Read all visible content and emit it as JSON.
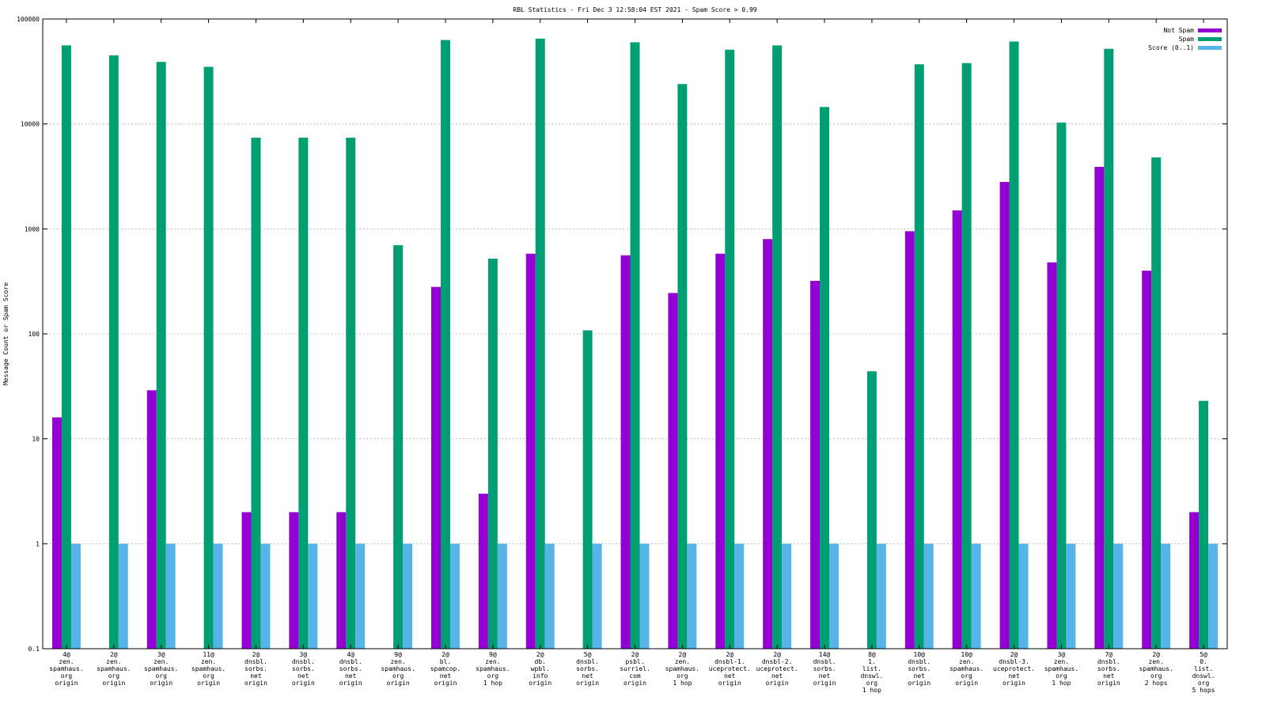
{
  "chart_data": {
    "type": "bar",
    "title": "RBL Statistics - Fri Dec  3 12:58:04 EST 2021 - Spam Score > 0.99",
    "xlabel": "",
    "ylabel": "Message Count or Spam Score",
    "yscale": "log",
    "ylim": [
      0.1,
      100000
    ],
    "yticks": [
      "0.1",
      "1",
      "10",
      "100",
      "1000",
      "10000",
      "100000"
    ],
    "grid": true,
    "legend_position": "top-right",
    "categories": [
      [
        "4@",
        "zen.",
        "spamhaus.",
        "org",
        "origin"
      ],
      [
        "2@",
        "zen.",
        "spamhaus.",
        "org",
        "origin"
      ],
      [
        "3@",
        "zen.",
        "spamhaus.",
        "org",
        "origin"
      ],
      [
        "11@",
        "zen.",
        "spamhaus.",
        "org",
        "origin"
      ],
      [
        "2@",
        "dnsbl.",
        "sorbs.",
        "net",
        "origin"
      ],
      [
        "3@",
        "dnsbl.",
        "sorbs.",
        "net",
        "origin"
      ],
      [
        "4@",
        "dnsbl.",
        "sorbs.",
        "net",
        "origin"
      ],
      [
        "9@",
        "zen.",
        "spamhaus.",
        "org",
        "origin"
      ],
      [
        "2@",
        "bl.",
        "spamcop.",
        "net",
        "origin"
      ],
      [
        "9@",
        "zen.",
        "spamhaus.",
        "org",
        "1 hop"
      ],
      [
        "2@",
        "db.",
        "wpbl.",
        "info",
        "origin"
      ],
      [
        "5@",
        "dnsbl.",
        "sorbs.",
        "net",
        "origin"
      ],
      [
        "2@",
        "psbl.",
        "surriel.",
        "com",
        "origin"
      ],
      [
        "2@",
        "zen.",
        "spamhaus.",
        "org",
        "1 hop"
      ],
      [
        "2@",
        "dnsbl-1.",
        "uceprotect.",
        "net",
        "origin"
      ],
      [
        "2@",
        "dnsbl-2.",
        "uceprotect.",
        "net",
        "origin"
      ],
      [
        "14@",
        "dnsbl.",
        "sorbs.",
        "net",
        "origin"
      ],
      [
        "8@",
        "1.",
        "list.",
        "dnswl.",
        "org",
        "1 hop"
      ],
      [
        "10@",
        "dnsbl.",
        "sorbs.",
        "net",
        "origin"
      ],
      [
        "10@",
        "zen.",
        "spamhaus.",
        "org",
        "origin"
      ],
      [
        "2@",
        "dnsbl-3.",
        "uceprotect.",
        "net",
        "origin"
      ],
      [
        "3@",
        "zen.",
        "spamhaus.",
        "org",
        "1 hop"
      ],
      [
        "7@",
        "dnsbl.",
        "sorbs.",
        "net",
        "origin"
      ],
      [
        "2@",
        "zen.",
        "spamhaus.",
        "org",
        "2 hops"
      ],
      [
        "5@",
        "0.",
        "list.",
        "dnswl.",
        "org",
        "5 hops"
      ]
    ],
    "series": [
      {
        "name": "Not Spam",
        "color": "#9400d3",
        "values": [
          16,
          null,
          29,
          null,
          2,
          2,
          2,
          null,
          280,
          3,
          580,
          null,
          560,
          245,
          580,
          800,
          320,
          null,
          950,
          1500,
          2800,
          480,
          3900,
          400,
          2
        ]
      },
      {
        "name": "Spam",
        "color": "#009e73",
        "values": [
          56000,
          45000,
          39000,
          35000,
          7400,
          7400,
          7400,
          700,
          63000,
          520,
          65000,
          108,
          60000,
          24000,
          51000,
          56000,
          14500,
          44,
          37000,
          38000,
          61000,
          10300,
          52000,
          4800,
          23
        ]
      },
      {
        "name": "Score (0..1)",
        "color": "#56b4e9",
        "values": [
          1,
          1,
          1,
          1,
          1,
          1,
          1,
          1,
          1,
          1,
          1,
          1,
          1,
          1,
          1,
          1,
          1,
          1,
          1,
          1,
          1,
          1,
          1,
          1,
          1
        ]
      }
    ]
  }
}
